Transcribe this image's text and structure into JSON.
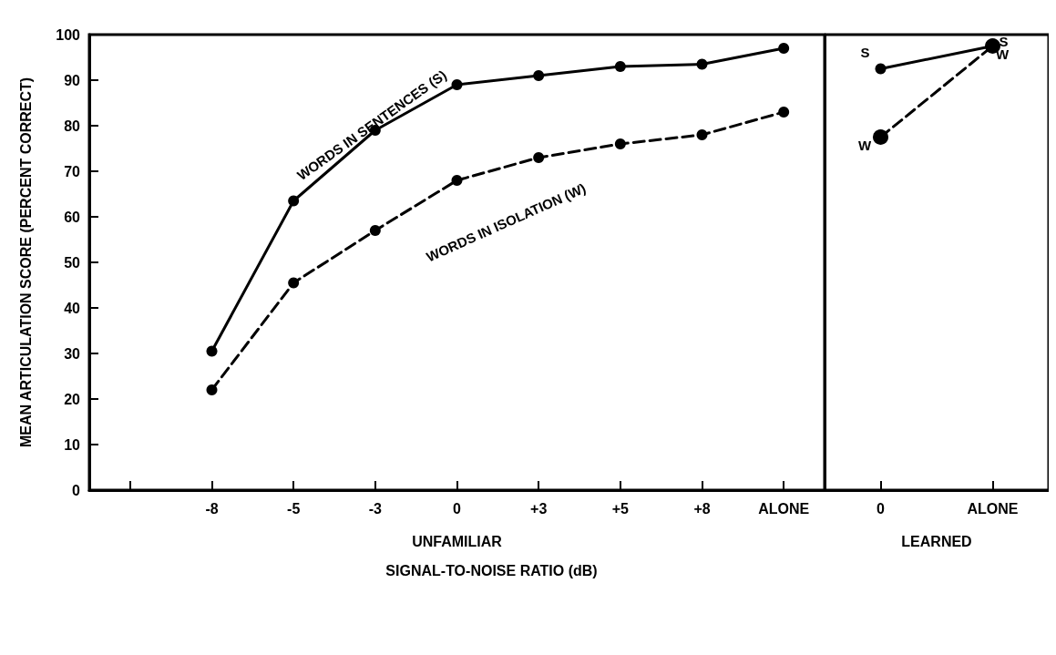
{
  "chart_data": [
    {
      "type": "line",
      "xlabel": "UNFAMILIAR",
      "ylabel": "MEAN ARTICULATION SCORE (PERCENT CORRECT)",
      "categories": [
        null,
        "-8",
        "-5",
        "-3",
        "0",
        "+3",
        "+5",
        "+8",
        "ALONE"
      ],
      "ylim": [
        0,
        100
      ],
      "yticks": [
        0,
        10,
        20,
        30,
        40,
        50,
        60,
        70,
        80,
        90,
        100
      ],
      "grid": false,
      "legend": false,
      "marker": "circle",
      "series": [
        {
          "name": "WORDS IN SENTENCES (S)",
          "color": "#000000",
          "line_style": "solid",
          "values": [
            null,
            30.5,
            63.5,
            79,
            89,
            91,
            93,
            93.5,
            97
          ]
        },
        {
          "name": "WORDS IN ISOLATION (W)",
          "color": "#000000",
          "line_style": "dashed",
          "values": [
            null,
            22,
            45.5,
            57,
            68,
            73,
            76,
            78,
            83
          ]
        }
      ],
      "annotations": [
        "SIGNAL-TO-NOISE RATIO (dB)"
      ]
    },
    {
      "type": "line",
      "xlabel": "LEARNED",
      "categories": [
        "0",
        "ALONE"
      ],
      "ylim": [
        0,
        100
      ],
      "yticks": [
        0,
        10,
        20,
        30,
        40,
        50,
        60,
        70,
        80,
        90,
        100
      ],
      "tick_labels": "x",
      "grid": false,
      "legend": false,
      "marker": "circle",
      "series": [
        {
          "name": "S",
          "color": "#000000",
          "line_style": "solid",
          "values": [
            92.5,
            97.5
          ]
        },
        {
          "name": "W",
          "color": "#000000",
          "line_style": "dashed",
          "values": [
            77.5,
            97.5
          ]
        }
      ]
    }
  ]
}
